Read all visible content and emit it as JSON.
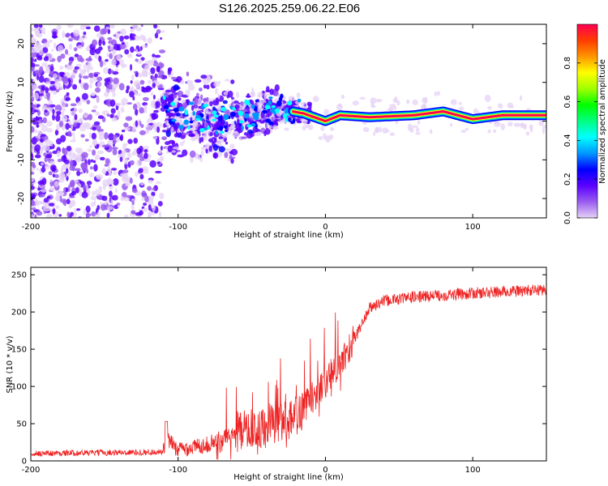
{
  "title": "S126.2025.259.06.22.E06",
  "colors": {
    "snr_line": "#ee2222",
    "frame": "#000000",
    "colormap": [
      "#e6d2f5",
      "#9a5cf0",
      "#5a00ff",
      "#0000ff",
      "#0096ff",
      "#00ffff",
      "#00ff80",
      "#00ff00",
      "#a0ff00",
      "#ffff00",
      "#ff9600",
      "#ff3c00",
      "#ff0050"
    ]
  },
  "chart_data": [
    {
      "id": "spectrogram",
      "type": "heatmap",
      "title": "S126.2025.259.06.22.E06",
      "xlabel": "Height of straight line (km)",
      "ylabel": "Frequency (Hz)",
      "xlim": [
        -200,
        150
      ],
      "ylim": [
        -25,
        25
      ],
      "xticks": [
        -200,
        -100,
        0,
        100
      ],
      "xtick_labels": [
        "-200",
        "-100",
        "0",
        "100"
      ],
      "yticks": [
        20,
        10,
        0,
        -10,
        -20
      ],
      "ytick_labels": [
        "20",
        "10",
        "0",
        "-10",
        "-20"
      ],
      "colorbar": {
        "label": "Normalized spectral amplitude",
        "range": [
          0,
          1
        ],
        "ticks": [
          0.0,
          0.2,
          0.4,
          0.6,
          0.8
        ],
        "tick_labels": [
          "0.0",
          "0.2",
          "0.4",
          "0.6",
          "0.8"
        ]
      },
      "ridge": {
        "description_points_km": [
          -110,
          -90,
          -70,
          -50,
          -30,
          -15,
          0,
          10,
          30,
          60,
          80,
          90,
          100,
          120,
          150
        ],
        "frequency_hz": [
          3,
          1,
          0,
          2,
          3,
          2,
          0,
          1.5,
          1,
          1.5,
          2.5,
          1.5,
          0.5,
          1.5,
          1.5
        ]
      }
    },
    {
      "id": "snr",
      "type": "line",
      "xlabel": "Height of straight line (km)",
      "ylabel": "SNR (10 * v/v)",
      "xlim": [
        -200,
        150
      ],
      "ylim": [
        0,
        260
      ],
      "xticks": [
        -200,
        -100,
        0,
        100
      ],
      "xtick_labels": [
        "-200",
        "-100",
        "0",
        "100"
      ],
      "yticks": [
        0,
        50,
        100,
        150,
        200,
        250
      ],
      "ytick_labels": [
        "0",
        "50",
        "100",
        "150",
        "200",
        "250"
      ],
      "trend": {
        "x": [
          -200,
          -110,
          -108,
          -100,
          -80,
          -60,
          -40,
          -20,
          0,
          10,
          20,
          30,
          40,
          60,
          100,
          150
        ],
        "y": [
          10,
          12,
          30,
          15,
          22,
          40,
          45,
          60,
          105,
          130,
          165,
          205,
          215,
          220,
          225,
          230
        ]
      }
    }
  ]
}
